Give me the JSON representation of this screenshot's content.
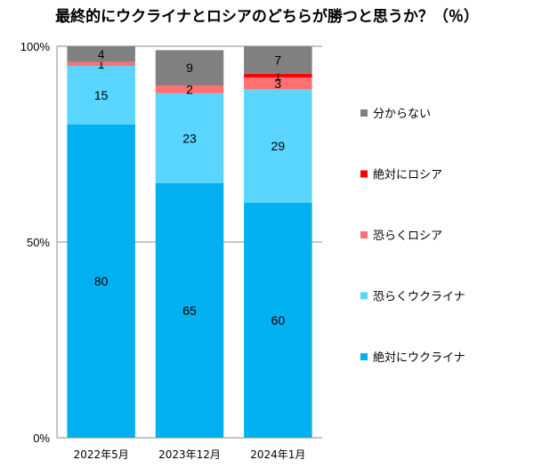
{
  "chart_data": {
    "type": "bar",
    "stacked": true,
    "title": "最終的にウクライナとロシアのどちらが勝つと思うか？（％）",
    "categories": [
      "2022年5月",
      "2023年12月",
      "2024年1月"
    ],
    "series": [
      {
        "name": "絶対にウクライナ",
        "color": "#00b0f0",
        "values": [
          80,
          65,
          60
        ]
      },
      {
        "name": "恐らくウクライナ",
        "color": "#59d5ff",
        "values": [
          15,
          23,
          29
        ]
      },
      {
        "name": "恐らくロシア",
        "color": "#ff7070",
        "values": [
          1,
          2,
          3
        ]
      },
      {
        "name": "絶対にロシア",
        "color": "#ff0000",
        "values": [
          0,
          0,
          1
        ]
      },
      {
        "name": "分からない",
        "color": "#808080",
        "values": [
          4,
          9,
          7
        ]
      }
    ],
    "yticks": [
      "0%",
      "50%",
      "100%"
    ],
    "ylim": [
      0,
      100
    ],
    "legend_position": "right",
    "legend_order": [
      "分からない",
      "絶対にロシア",
      "恐らくロシア",
      "恐らくウクライナ",
      "絶対にウクライナ"
    ]
  }
}
